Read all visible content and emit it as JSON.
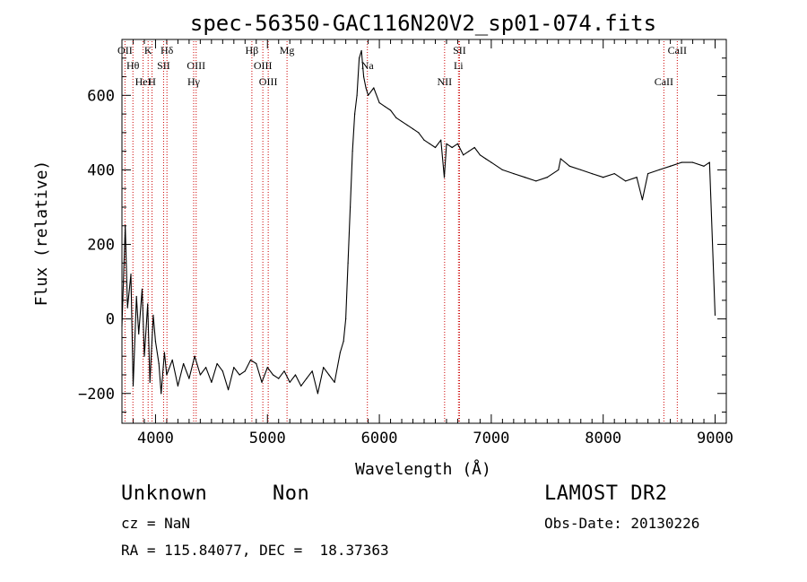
{
  "chart_data": {
    "type": "line",
    "title": "spec-56350-GAC116N20V2_sp01-074.fits",
    "xlabel": "Wavelength (Å)",
    "ylabel": "Flux (relative)",
    "xlim": [
      3700,
      9100
    ],
    "ylim": [
      -280,
      750
    ],
    "xticks": [
      4000,
      5000,
      6000,
      7000,
      8000,
      9000
    ],
    "yticks": [
      -200,
      0,
      200,
      400,
      600
    ],
    "line_color": "#000000",
    "marker_color": "#cc0000",
    "series": [
      {
        "x": [
          3700,
          3730,
          3750,
          3780,
          3800,
          3830,
          3850,
          3880,
          3900,
          3930,
          3950,
          3980,
          4000,
          4030,
          4050,
          4080,
          4100,
          4150,
          4200,
          4250,
          4300,
          4350,
          4400,
          4450,
          4500,
          4550,
          4600,
          4650,
          4700,
          4750,
          4800,
          4850,
          4900,
          4950,
          5000,
          5050,
          5100,
          5150,
          5200,
          5250,
          5300,
          5350,
          5400,
          5450,
          5500,
          5550,
          5600,
          5650,
          5680,
          5700,
          5720,
          5740,
          5760,
          5780,
          5800,
          5820,
          5840,
          5860,
          5880,
          5900,
          5950,
          6000,
          6050,
          6100,
          6150,
          6200,
          6250,
          6300,
          6350,
          6400,
          6450,
          6500,
          6550,
          6580,
          6600,
          6650,
          6700,
          6750,
          6800,
          6850,
          6900,
          6950,
          7000,
          7100,
          7200,
          7300,
          7400,
          7500,
          7600,
          7620,
          7700,
          7800,
          7900,
          8000,
          8100,
          8200,
          8300,
          8350,
          8400,
          8500,
          8600,
          8700,
          8800,
          8900,
          8950,
          9000
        ],
        "y": [
          -20,
          250,
          30,
          120,
          -180,
          60,
          -40,
          80,
          -100,
          40,
          -170,
          10,
          -60,
          -120,
          -200,
          -90,
          -150,
          -110,
          -180,
          -120,
          -160,
          -100,
          -150,
          -130,
          -170,
          -120,
          -140,
          -190,
          -130,
          -150,
          -140,
          -110,
          -120,
          -170,
          -130,
          -150,
          -160,
          -140,
          -170,
          -150,
          -180,
          -160,
          -140,
          -200,
          -130,
          -150,
          -170,
          -90,
          -60,
          0,
          150,
          300,
          450,
          550,
          600,
          700,
          720,
          650,
          620,
          600,
          620,
          580,
          570,
          560,
          540,
          530,
          520,
          510,
          500,
          480,
          470,
          460,
          480,
          380,
          470,
          460,
          470,
          440,
          450,
          460,
          440,
          430,
          420,
          400,
          390,
          380,
          370,
          380,
          400,
          430,
          410,
          400,
          390,
          380,
          390,
          370,
          380,
          320,
          390,
          400,
          410,
          420,
          420,
          410,
          420,
          10
        ]
      }
    ],
    "lines": [
      {
        "label": "OII",
        "x": 3727
      },
      {
        "label": "Hθ",
        "x": 3798
      },
      {
        "label": "HeI",
        "x": 3889
      },
      {
        "label": "K",
        "x": 3934
      },
      {
        "label": "SII",
        "x": 4072
      },
      {
        "label": "H",
        "x": 3969
      },
      {
        "label": "Hδ",
        "x": 4102
      },
      {
        "label": "OIII",
        "x": 4363
      },
      {
        "label": "Hγ",
        "x": 4341
      },
      {
        "label": "Hβ",
        "x": 4861
      },
      {
        "label": "OIII",
        "x": 4959
      },
      {
        "label": "OIII",
        "x": 5007
      },
      {
        "label": "Mg",
        "x": 5175
      },
      {
        "label": "Na",
        "x": 5893
      },
      {
        "label": "NII",
        "x": 6583
      },
      {
        "label": "SII",
        "x": 6716
      },
      {
        "label": "Li",
        "x": 6707
      },
      {
        "label": "CaII",
        "x": 8542
      },
      {
        "label": "CaII",
        "x": 8662
      }
    ]
  },
  "info": {
    "class": "Unknown",
    "subclass": "Non",
    "survey": "LAMOST DR2",
    "cz": "cz = NaN",
    "obs_date": "Obs-Date: 20130226",
    "coords": "RA = 115.84077, DEC =  18.37363"
  }
}
